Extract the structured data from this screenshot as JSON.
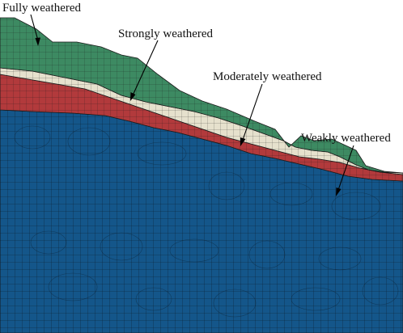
{
  "diagram": {
    "type": "slope-finite-element-mesh",
    "colors": {
      "fully": "#3d8a62",
      "strongly": "#e6e1cd",
      "moderately": "#b23a3c",
      "weakly": "#14568a",
      "mesh_line": "#1b1b1b",
      "leader": "#000000"
    },
    "layers": [
      {
        "key": "fully",
        "label": "Fully weathered"
      },
      {
        "key": "strongly",
        "label": "Strongly weathered"
      },
      {
        "key": "moderately",
        "label": "Moderately weathered"
      },
      {
        "key": "weakly",
        "label": "Weakly weathered"
      }
    ]
  }
}
